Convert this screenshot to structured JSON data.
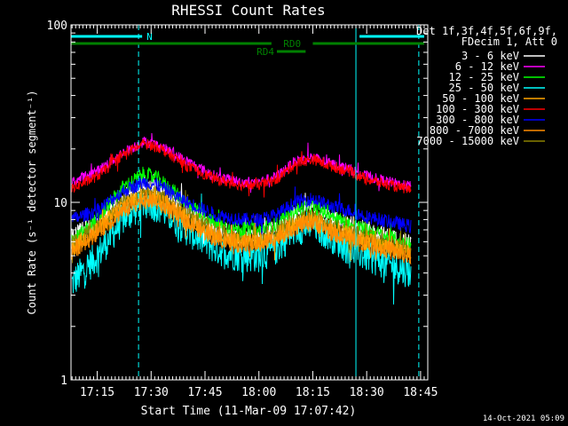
{
  "chart_data": {
    "type": "line",
    "title": "RHESSI Count Rates",
    "xlabel": "Start Time (11-Mar-09 17:07:42)",
    "ylabel": "Count Rate (s⁻¹ detector segment⁻¹)",
    "y_scale": "log",
    "ylim": [
      1,
      100
    ],
    "y_ticks": [
      "1",
      "10",
      "100"
    ],
    "x_range": [
      "17:07:42",
      "18:47:00"
    ],
    "x_ticks": [
      "17:15",
      "17:30",
      "17:45",
      "18:00",
      "18:15",
      "18:30",
      "18:45"
    ],
    "grid": false,
    "legend_position": "right",
    "legend_header": [
      "Det 1f,3f,4f,5f,6f,9f,",
      "FDecim 1, Att 0"
    ],
    "series": [
      {
        "name": "3 - 6 keV",
        "color": "#ffffff",
        "x": [
          "17:08",
          "17:15",
          "17:22",
          "17:28",
          "17:32",
          "17:40",
          "17:48",
          "17:55",
          "18:00",
          "18:05",
          "18:10",
          "18:15",
          "18:20",
          "18:25",
          "18:30",
          "18:40",
          "18:46"
        ],
        "values": [
          6.5,
          7.5,
          10.5,
          12.5,
          12,
          9,
          7,
          6.5,
          6.5,
          7,
          8.5,
          9,
          8,
          7.5,
          7,
          6,
          5.5
        ]
      },
      {
        "name": "6 - 12 keV",
        "color": "#ff00ff",
        "x": [
          "17:08",
          "17:15",
          "17:22",
          "17:28",
          "17:32",
          "17:40",
          "17:48",
          "17:55",
          "18:00",
          "18:05",
          "18:10",
          "18:15",
          "18:20",
          "18:25",
          "18:30",
          "18:40",
          "18:46"
        ],
        "values": [
          13,
          15,
          19,
          22,
          21,
          17,
          14,
          13,
          13,
          14,
          17,
          18,
          16.5,
          15.5,
          14,
          12.5,
          12
        ]
      },
      {
        "name": "12 - 25 keV",
        "color": "#00ff00",
        "x": [
          "17:08",
          "17:15",
          "17:22",
          "17:28",
          "17:32",
          "17:40",
          "17:48",
          "17:55",
          "18:00",
          "18:05",
          "18:10",
          "18:15",
          "18:20",
          "18:25",
          "18:30",
          "18:40",
          "18:46"
        ],
        "values": [
          6,
          8,
          12,
          14.5,
          13.5,
          10,
          7.5,
          7,
          7,
          7.5,
          9,
          9.5,
          8.5,
          7.5,
          7,
          6,
          5.5
        ]
      },
      {
        "name": "25 - 50 keV",
        "color": "#00ffff",
        "x": [
          "17:08",
          "17:15",
          "17:22",
          "17:28",
          "17:32",
          "17:40",
          "17:48",
          "17:55",
          "18:00",
          "18:05",
          "18:10",
          "18:15",
          "18:20",
          "18:25",
          "18:30",
          "18:40",
          "18:46"
        ],
        "values": [
          3.5,
          5,
          8,
          10,
          9.5,
          7,
          5.5,
          5,
          5,
          5.5,
          7,
          7.5,
          6.5,
          5.5,
          5,
          4.2,
          3.8
        ]
      },
      {
        "name": "50 - 100 keV",
        "color": "#ffa500",
        "x": [
          "17:08",
          "17:15",
          "17:22",
          "17:28",
          "17:32",
          "17:40",
          "17:48",
          "17:55",
          "18:00",
          "18:05",
          "18:10",
          "18:15",
          "18:20",
          "18:25",
          "18:30",
          "18:40",
          "18:46"
        ],
        "values": [
          5.5,
          7,
          9.5,
          11,
          10.5,
          8,
          6.5,
          6,
          6,
          6.5,
          7.5,
          8,
          7,
          6.5,
          6,
          5.3,
          5
        ]
      },
      {
        "name": "100 - 300 keV",
        "color": "#ff0000",
        "x": [
          "17:08",
          "17:15",
          "17:22",
          "17:28",
          "17:32",
          "17:40",
          "17:48",
          "17:55",
          "18:00",
          "18:05",
          "18:10",
          "18:15",
          "18:20",
          "18:25",
          "18:30",
          "18:40",
          "18:46"
        ],
        "values": [
          12,
          14,
          18.5,
          21.5,
          20.5,
          16,
          13.5,
          12.5,
          12.5,
          13.5,
          16.5,
          17.5,
          16,
          15,
          13.5,
          12,
          11.5
        ]
      },
      {
        "name": "300 - 800 keV",
        "color": "#0000ff",
        "x": [
          "17:08",
          "17:15",
          "17:22",
          "17:28",
          "17:32",
          "17:40",
          "17:48",
          "17:55",
          "18:00",
          "18:05",
          "18:10",
          "18:15",
          "18:20",
          "18:25",
          "18:30",
          "18:40",
          "18:46"
        ],
        "values": [
          8,
          9,
          11.5,
          13,
          12.5,
          10,
          8.5,
          8,
          8,
          8.5,
          10,
          10.5,
          9.5,
          9,
          8.3,
          7.5,
          7
        ]
      },
      {
        "name": "800 - 7000 keV",
        "color": "#ff8c00",
        "x": [
          "17:08",
          "17:15",
          "17:22",
          "17:28",
          "17:32",
          "17:40",
          "17:48",
          "17:55",
          "18:00",
          "18:05",
          "18:10",
          "18:15",
          "18:20",
          "18:25",
          "18:30",
          "18:40",
          "18:46"
        ],
        "values": [
          5.3,
          6.8,
          9,
          10.5,
          10,
          7.8,
          6.3,
          5.8,
          5.8,
          6.3,
          7.3,
          7.8,
          6.8,
          6.3,
          5.8,
          5.1,
          4.8
        ]
      },
      {
        "name": "7000 - 15000 keV",
        "color": "#8b8000",
        "x": [
          "17:08",
          "17:15",
          "17:22",
          "17:28",
          "17:32",
          "17:40",
          "17:48",
          "17:55",
          "18:00",
          "18:05",
          "18:10",
          "18:15",
          "18:20",
          "18:25",
          "18:30",
          "18:40",
          "18:46"
        ],
        "values": [
          5.8,
          7.2,
          9.8,
          11.5,
          11,
          8.5,
          6.8,
          6.2,
          6.2,
          6.8,
          7.8,
          8.3,
          7.3,
          6.8,
          6.3,
          5.5,
          5.2
        ]
      }
    ],
    "annotations": [
      {
        "label": "N",
        "color": "#00ffff",
        "segments": [
          [
            "17:07:42",
            "17:27:30"
          ],
          [
            "18:28:00",
            "18:46:00"
          ]
        ],
        "level": "top"
      },
      {
        "label": "RD0",
        "color": "#008000",
        "segments": [
          [
            "17:07:42",
            "18:03:30"
          ],
          [
            "18:15:00",
            "18:46:00"
          ]
        ],
        "level": "second"
      },
      {
        "label": "RD4",
        "color": "#008000",
        "segments": [
          [
            "18:05:00",
            "18:13:00"
          ]
        ],
        "level": "third"
      }
    ],
    "vertical_lines": [
      {
        "time": "17:07:42",
        "color": "#00ffff",
        "style": "solid"
      },
      {
        "time": "17:26:30",
        "color": "#00ffff",
        "style": "dashed"
      },
      {
        "time": "18:27:00",
        "color": "#00ffff",
        "style": "solid"
      },
      {
        "time": "18:44:30",
        "color": "#00ffff",
        "style": "dashed"
      }
    ]
  },
  "footer": {
    "timestamp": "14-Oct-2021 05:09"
  }
}
